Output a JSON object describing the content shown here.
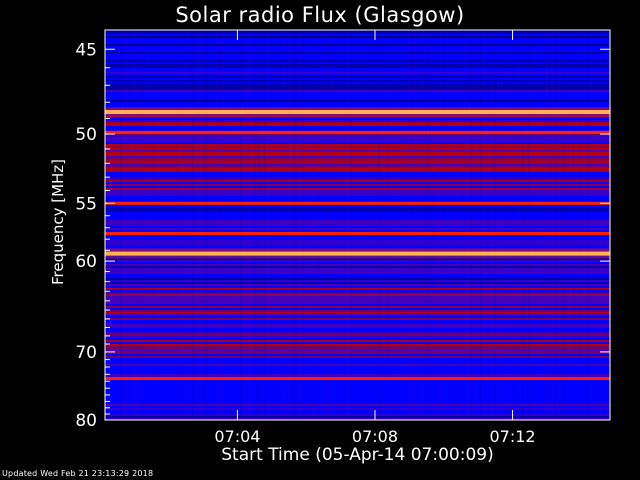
{
  "chart_data": {
    "type": "heatmap",
    "title": "Solar radio Flux (Glasgow)",
    "xlabel": "Start Time (05-Apr-14 07:00:09)",
    "ylabel": "Frequency [MHz]",
    "x_ticks": [
      "07:04",
      "07:08",
      "07:12"
    ],
    "y_ticks": [
      "45",
      "50",
      "55",
      "60",
      "70",
      "80"
    ],
    "ylim": [
      44,
      80
    ],
    "x_range": [
      "07:00:09",
      "07:14:50"
    ],
    "colormap": [
      "#000080",
      "#0000ff",
      "#5000b0",
      "#c00000",
      "#ff2000",
      "#ffff80"
    ],
    "bands": [
      {
        "freq": 48.6,
        "intensity": "very-high"
      },
      {
        "freq": 49.9,
        "intensity": "high"
      },
      {
        "freq": 55.0,
        "intensity": "high"
      },
      {
        "freq": 57.5,
        "intensity": "high"
      },
      {
        "freq": 59.3,
        "intensity": "very-high"
      },
      {
        "freq": 73.6,
        "intensity": "high"
      }
    ]
  },
  "footer": "Updated Wed Feb 21 23:13:29 2018"
}
